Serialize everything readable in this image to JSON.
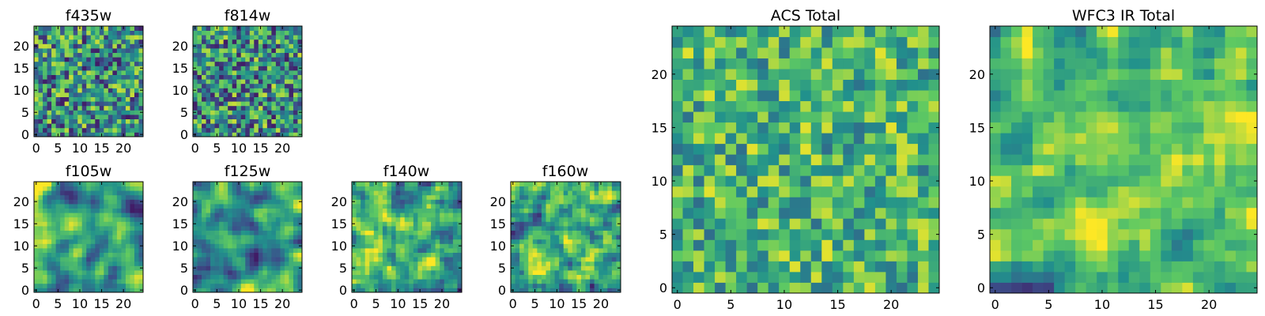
{
  "chart_data": [
    {
      "type": "heatmap",
      "title": "f435w",
      "grid_size": 25,
      "seed": 11,
      "smooth": 0,
      "mid": 0.5,
      "spread": 0.42,
      "x": {
        "ticks": [
          0,
          5,
          10,
          15,
          20
        ],
        "labels": [
          "0",
          "5",
          "10",
          "15",
          "20"
        ],
        "range": [
          -0.5,
          24.5
        ]
      },
      "y": {
        "ticks": [
          0,
          5,
          10,
          15,
          20
        ],
        "labels": [
          "0",
          "5",
          "10",
          "15",
          "20"
        ],
        "range": [
          -0.5,
          24.5
        ]
      }
    },
    {
      "type": "heatmap",
      "title": "f814w",
      "grid_size": 25,
      "seed": 23,
      "smooth": 0,
      "mid": 0.5,
      "spread": 0.42,
      "x": {
        "ticks": [
          0,
          5,
          10,
          15,
          20
        ],
        "labels": [
          "0",
          "5",
          "10",
          "15",
          "20"
        ],
        "range": [
          -0.5,
          24.5
        ]
      },
      "y": {
        "ticks": [
          0,
          5,
          10,
          15,
          20
        ],
        "labels": [
          "0",
          "5",
          "10",
          "15",
          "20"
        ],
        "range": [
          -0.5,
          24.5
        ]
      }
    },
    {
      "type": "heatmap",
      "title": "f105w",
      "grid_size": 25,
      "seed": 37,
      "smooth": 2,
      "mid": 0.58,
      "spread": 0.5,
      "x": {
        "ticks": [
          0,
          5,
          10,
          15,
          20
        ],
        "labels": [
          "0",
          "5",
          "10",
          "15",
          "20"
        ],
        "range": [
          -0.5,
          24.5
        ]
      },
      "y": {
        "ticks": [
          0,
          5,
          10,
          15,
          20
        ],
        "labels": [
          "0",
          "5",
          "10",
          "15",
          "20"
        ],
        "range": [
          -0.5,
          24.5
        ]
      }
    },
    {
      "type": "heatmap",
      "title": "f125w",
      "grid_size": 25,
      "seed": 41,
      "smooth": 2,
      "mid": 0.58,
      "spread": 0.5,
      "x": {
        "ticks": [
          0,
          5,
          10,
          15,
          20
        ],
        "labels": [
          "0",
          "5",
          "10",
          "15",
          "20"
        ],
        "range": [
          -0.5,
          24.5
        ]
      },
      "y": {
        "ticks": [
          0,
          5,
          10,
          15,
          20
        ],
        "labels": [
          "0",
          "5",
          "10",
          "15",
          "20"
        ],
        "range": [
          -0.5,
          24.5
        ]
      }
    },
    {
      "type": "heatmap",
      "title": "f140w",
      "grid_size": 25,
      "seed": 53,
      "smooth": 1,
      "mid": 0.6,
      "spread": 0.5,
      "x": {
        "ticks": [
          0,
          5,
          10,
          15,
          20
        ],
        "labels": [
          "0",
          "5",
          "10",
          "15",
          "20"
        ],
        "range": [
          -0.5,
          24.5
        ]
      },
      "y": {
        "ticks": [
          0,
          5,
          10,
          15,
          20
        ],
        "labels": [
          "0",
          "5",
          "10",
          "15",
          "20"
        ],
        "range": [
          -0.5,
          24.5
        ]
      }
    },
    {
      "type": "heatmap",
      "title": "f160w",
      "grid_size": 25,
      "seed": 67,
      "smooth": 1,
      "mid": 0.6,
      "spread": 0.5,
      "x": {
        "ticks": [
          0,
          5,
          10,
          15,
          20
        ],
        "labels": [
          "0",
          "5",
          "10",
          "15",
          "20"
        ],
        "range": [
          -0.5,
          24.5
        ]
      },
      "y": {
        "ticks": [
          0,
          5,
          10,
          15,
          20
        ],
        "labels": [
          "0",
          "5",
          "10",
          "15",
          "20"
        ],
        "range": [
          -0.5,
          24.5
        ]
      }
    },
    {
      "type": "heatmap",
      "title": "ACS Total",
      "grid_size": 25,
      "seed": 79,
      "smooth": 0,
      "mid": 0.66,
      "spread": 0.3,
      "x": {
        "ticks": [
          0,
          5,
          10,
          15,
          20
        ],
        "labels": [
          "0",
          "5",
          "10",
          "15",
          "20"
        ],
        "range": [
          -0.5,
          24.5
        ]
      },
      "y": {
        "ticks": [
          0,
          5,
          10,
          15,
          20
        ],
        "labels": [
          "0",
          "5",
          "10",
          "15",
          "20"
        ],
        "range": [
          -0.5,
          24.5
        ]
      }
    },
    {
      "type": "heatmap",
      "title": "WFC3 IR Total",
      "grid_size": 25,
      "seed": 97,
      "smooth": 1,
      "mid": 0.62,
      "spread": 0.46,
      "x": {
        "ticks": [
          0,
          5,
          10,
          15,
          20
        ],
        "labels": [
          "0",
          "5",
          "10",
          "15",
          "20"
        ],
        "range": [
          -0.5,
          24.5
        ]
      },
      "y": {
        "ticks": [
          0,
          5,
          10,
          15,
          20
        ],
        "labels": [
          "0",
          "5",
          "10",
          "15",
          "20"
        ],
        "range": [
          -0.5,
          24.5
        ]
      }
    }
  ],
  "colormap": [
    "#440154",
    "#3b528b",
    "#21918c",
    "#5ec962",
    "#fde725"
  ]
}
